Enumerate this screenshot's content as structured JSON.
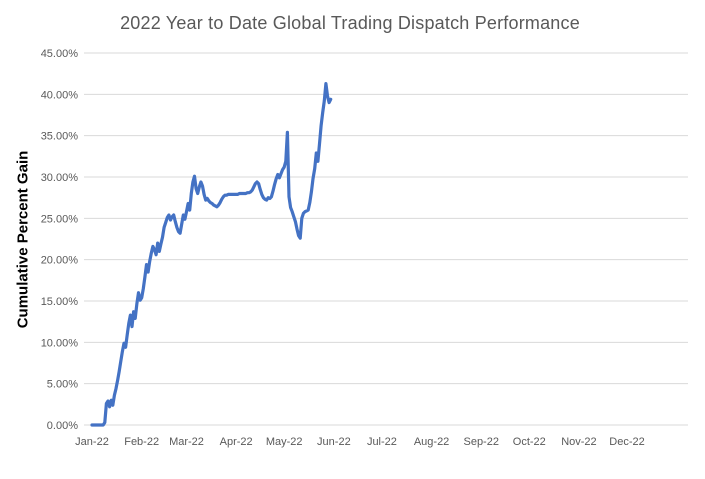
{
  "chart": {
    "title": "2022 Year to Date Global Trading Dispatch Performance",
    "y_axis_title": "Cumulative Percent Gain"
  },
  "colors": {
    "line": "#4472C4",
    "gridline": "#D9D9D9",
    "title_text": "#595959",
    "tick_text": "#595959",
    "y_axis_title_text": "#000000",
    "background": "#FFFFFF"
  },
  "chart_data": {
    "type": "line",
    "title": "2022 Year to Date Global Trading Dispatch Performance",
    "xlabel": "",
    "ylabel": "Cumulative Percent Gain",
    "ylim": [
      0,
      45
    ],
    "y_tick_step": 5,
    "y_tick_labels_top_to_bottom": [
      "45.00%",
      "40.00%",
      "35.00%",
      "30.00%",
      "25.00%",
      "20.00%",
      "15.00%",
      "10.00%",
      "5.00%",
      "0.00%"
    ],
    "x_tick_labels": [
      "Jan-22",
      "Feb-22",
      "Mar-22",
      "Apr-22",
      "May-22",
      "Jun-22",
      "Jul-22",
      "Aug-22",
      "Sep-22",
      "Oct-22",
      "Nov-22",
      "Dec-22"
    ],
    "x_month_start_days": [
      1,
      32,
      60,
      91,
      121,
      152,
      182,
      213,
      244,
      274,
      305,
      335
    ],
    "grid": "horizontal-only",
    "legend": "none",
    "series": [
      {
        "name": "2022 YTD cumulative percent gain",
        "color": "#4472C4",
        "x_unit": "day_of_year_2022",
        "y_unit": "percent",
        "points": [
          [
            1,
            0.0
          ],
          [
            2,
            0.0
          ],
          [
            3,
            0.0
          ],
          [
            4,
            0.0
          ],
          [
            5,
            0.0
          ],
          [
            6,
            0.0
          ],
          [
            7,
            0.0
          ],
          [
            8,
            0.0
          ],
          [
            9,
            0.3
          ],
          [
            10,
            2.6
          ],
          [
            11,
            2.9
          ],
          [
            12,
            2.2
          ],
          [
            13,
            3.0
          ],
          [
            14,
            2.4
          ],
          [
            15,
            3.6
          ],
          [
            16,
            4.4
          ],
          [
            17,
            5.4
          ],
          [
            18,
            6.5
          ],
          [
            19,
            7.7
          ],
          [
            20,
            8.9
          ],
          [
            21,
            9.9
          ],
          [
            22,
            9.4
          ],
          [
            23,
            10.9
          ],
          [
            24,
            12.3
          ],
          [
            25,
            13.3
          ],
          [
            26,
            11.9
          ],
          [
            27,
            13.7
          ],
          [
            28,
            12.9
          ],
          [
            29,
            14.7
          ],
          [
            30,
            16.0
          ],
          [
            31,
            15.1
          ],
          [
            32,
            15.4
          ],
          [
            33,
            16.5
          ],
          [
            34,
            17.9
          ],
          [
            35,
            19.4
          ],
          [
            36,
            18.5
          ],
          [
            37,
            19.8
          ],
          [
            38,
            20.8
          ],
          [
            39,
            21.6
          ],
          [
            40,
            21.2
          ],
          [
            41,
            20.6
          ],
          [
            42,
            22.0
          ],
          [
            43,
            21.0
          ],
          [
            44,
            21.9
          ],
          [
            45,
            22.7
          ],
          [
            46,
            23.9
          ],
          [
            47,
            24.5
          ],
          [
            48,
            25.1
          ],
          [
            49,
            25.4
          ],
          [
            50,
            24.8
          ],
          [
            51,
            25.2
          ],
          [
            52,
            25.4
          ],
          [
            53,
            24.6
          ],
          [
            54,
            23.9
          ],
          [
            55,
            23.4
          ],
          [
            56,
            23.2
          ],
          [
            57,
            24.3
          ],
          [
            58,
            25.4
          ],
          [
            59,
            24.9
          ],
          [
            60,
            25.8
          ],
          [
            61,
            26.8
          ],
          [
            62,
            26.0
          ],
          [
            63,
            28.0
          ],
          [
            64,
            29.4
          ],
          [
            65,
            30.1
          ],
          [
            66,
            28.6
          ],
          [
            67,
            28.0
          ],
          [
            68,
            28.8
          ],
          [
            69,
            29.4
          ],
          [
            70,
            28.9
          ],
          [
            71,
            27.9
          ],
          [
            72,
            27.2
          ],
          [
            73,
            27.4
          ],
          [
            74,
            27.1
          ],
          [
            75,
            26.9
          ],
          [
            76,
            26.8
          ],
          [
            77,
            26.6
          ],
          [
            78,
            26.5
          ],
          [
            79,
            26.4
          ],
          [
            80,
            26.6
          ],
          [
            81,
            26.9
          ],
          [
            82,
            27.3
          ],
          [
            83,
            27.6
          ],
          [
            84,
            27.8
          ],
          [
            85,
            27.8
          ],
          [
            86,
            27.9
          ],
          [
            87,
            27.9
          ],
          [
            88,
            27.9
          ],
          [
            89,
            27.9
          ],
          [
            90,
            27.9
          ],
          [
            91,
            27.9
          ],
          [
            92,
            27.9
          ],
          [
            93,
            28.0
          ],
          [
            94,
            28.0
          ],
          [
            95,
            28.0
          ],
          [
            96,
            28.0
          ],
          [
            97,
            28.0
          ],
          [
            98,
            28.1
          ],
          [
            99,
            28.1
          ],
          [
            100,
            28.2
          ],
          [
            101,
            28.4
          ],
          [
            102,
            28.8
          ],
          [
            103,
            29.2
          ],
          [
            104,
            29.4
          ],
          [
            105,
            29.2
          ],
          [
            106,
            28.5
          ],
          [
            107,
            27.9
          ],
          [
            108,
            27.5
          ],
          [
            109,
            27.3
          ],
          [
            110,
            27.2
          ],
          [
            111,
            27.5
          ],
          [
            112,
            27.4
          ],
          [
            113,
            27.6
          ],
          [
            114,
            28.3
          ],
          [
            115,
            29.1
          ],
          [
            116,
            29.8
          ],
          [
            117,
            30.3
          ],
          [
            118,
            29.9
          ],
          [
            119,
            30.4
          ],
          [
            120,
            30.9
          ],
          [
            121,
            31.2
          ],
          [
            122,
            31.9
          ],
          [
            123,
            35.4
          ],
          [
            124,
            27.6
          ],
          [
            125,
            26.3
          ],
          [
            126,
            25.8
          ],
          [
            127,
            25.2
          ],
          [
            128,
            24.6
          ],
          [
            129,
            23.7
          ],
          [
            130,
            22.9
          ],
          [
            131,
            22.6
          ],
          [
            132,
            25.0
          ],
          [
            133,
            25.6
          ],
          [
            134,
            25.8
          ],
          [
            135,
            25.9
          ],
          [
            136,
            26.0
          ],
          [
            137,
            26.9
          ],
          [
            138,
            28.2
          ],
          [
            139,
            29.8
          ],
          [
            140,
            31.0
          ],
          [
            141,
            32.9
          ],
          [
            142,
            31.9
          ],
          [
            143,
            34.0
          ],
          [
            144,
            36.2
          ],
          [
            145,
            37.8
          ],
          [
            146,
            39.2
          ],
          [
            147,
            41.3
          ],
          [
            148,
            39.8
          ],
          [
            149,
            39.0
          ],
          [
            150,
            39.4
          ]
        ]
      }
    ]
  }
}
